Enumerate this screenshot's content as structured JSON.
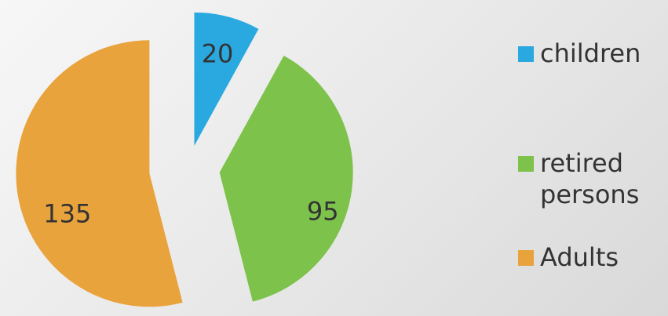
{
  "chart_data": {
    "type": "pie",
    "categories": [
      "children",
      "retired persons",
      "Adults"
    ],
    "values": [
      20,
      95,
      135
    ],
    "colors": [
      "#2aa9e0",
      "#7dc24b",
      "#e8a33d"
    ],
    "legend": "right"
  }
}
